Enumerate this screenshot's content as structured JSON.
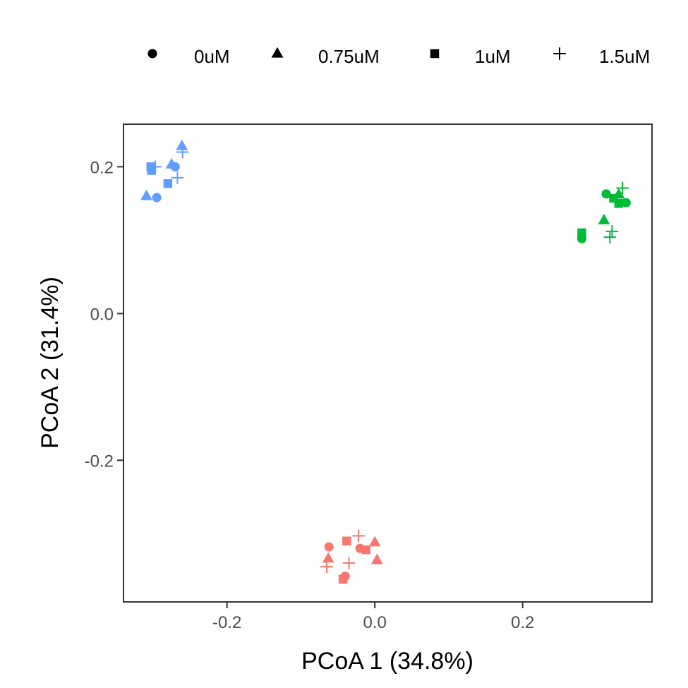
{
  "chart_data": {
    "type": "scatter",
    "xlabel": "PCoA 1 (34.8%)",
    "ylabel": "PCoA 2 (31.4%)",
    "xlim": [
      -0.34,
      0.375
    ],
    "ylim": [
      -0.393,
      0.258
    ],
    "x_ticks": [
      {
        "value": -0.2,
        "label": "-0.2"
      },
      {
        "value": 0.0,
        "label": "0.0"
      },
      {
        "value": 0.2,
        "label": "0.2"
      }
    ],
    "y_ticks": [
      {
        "value": 0.2,
        "label": "0.2"
      },
      {
        "value": 0.0,
        "label": "0.0"
      },
      {
        "value": -0.2,
        "label": "-0.2"
      }
    ],
    "grid": false,
    "legend_position": "top",
    "legend": [
      {
        "shape": "circle",
        "label": "0uM"
      },
      {
        "shape": "triangle",
        "label": "0.75uM"
      },
      {
        "shape": "square",
        "label": "1uM"
      },
      {
        "shape": "plus",
        "label": "1.5uM"
      }
    ],
    "colors": {
      "blue": "#619CFF",
      "green": "#00BA38",
      "red": "#F8766D"
    },
    "points": [
      {
        "x": -0.302,
        "y": 0.197,
        "shape": "circle",
        "color": "blue"
      },
      {
        "x": -0.295,
        "y": 0.158,
        "shape": "circle",
        "color": "blue"
      },
      {
        "x": -0.27,
        "y": 0.2,
        "shape": "circle",
        "color": "blue"
      },
      {
        "x": -0.309,
        "y": 0.16,
        "shape": "triangle",
        "color": "blue"
      },
      {
        "x": -0.275,
        "y": 0.203,
        "shape": "triangle",
        "color": "blue"
      },
      {
        "x": -0.261,
        "y": 0.228,
        "shape": "triangle",
        "color": "blue"
      },
      {
        "x": -0.303,
        "y": 0.2,
        "shape": "square",
        "color": "blue"
      },
      {
        "x": -0.302,
        "y": 0.195,
        "shape": "square",
        "color": "blue"
      },
      {
        "x": -0.28,
        "y": 0.177,
        "shape": "square",
        "color": "blue"
      },
      {
        "x": -0.297,
        "y": 0.2,
        "shape": "plus",
        "color": "blue"
      },
      {
        "x": -0.267,
        "y": 0.185,
        "shape": "plus",
        "color": "blue"
      },
      {
        "x": -0.26,
        "y": 0.22,
        "shape": "plus",
        "color": "blue"
      },
      {
        "x": 0.28,
        "y": 0.102,
        "shape": "circle",
        "color": "green"
      },
      {
        "x": 0.313,
        "y": 0.163,
        "shape": "circle",
        "color": "green"
      },
      {
        "x": 0.34,
        "y": 0.151,
        "shape": "circle",
        "color": "green"
      },
      {
        "x": 0.31,
        "y": 0.127,
        "shape": "triangle",
        "color": "green"
      },
      {
        "x": 0.33,
        "y": 0.162,
        "shape": "triangle",
        "color": "green"
      },
      {
        "x": 0.28,
        "y": 0.11,
        "shape": "square",
        "color": "green"
      },
      {
        "x": 0.323,
        "y": 0.157,
        "shape": "square",
        "color": "green"
      },
      {
        "x": 0.33,
        "y": 0.15,
        "shape": "square",
        "color": "green"
      },
      {
        "x": 0.318,
        "y": 0.104,
        "shape": "plus",
        "color": "green"
      },
      {
        "x": 0.321,
        "y": 0.112,
        "shape": "plus",
        "color": "green"
      },
      {
        "x": 0.335,
        "y": 0.171,
        "shape": "plus",
        "color": "green"
      },
      {
        "x": -0.062,
        "y": -0.318,
        "shape": "circle",
        "color": "red"
      },
      {
        "x": -0.04,
        "y": -0.358,
        "shape": "circle",
        "color": "red"
      },
      {
        "x": -0.02,
        "y": -0.32,
        "shape": "circle",
        "color": "red"
      },
      {
        "x": -0.063,
        "y": -0.334,
        "shape": "triangle",
        "color": "red"
      },
      {
        "x": 0.0,
        "y": -0.312,
        "shape": "triangle",
        "color": "red"
      },
      {
        "x": 0.003,
        "y": -0.336,
        "shape": "triangle",
        "color": "red"
      },
      {
        "x": -0.043,
        "y": -0.362,
        "shape": "square",
        "color": "red"
      },
      {
        "x": -0.038,
        "y": -0.31,
        "shape": "square",
        "color": "red"
      },
      {
        "x": -0.012,
        "y": -0.322,
        "shape": "square",
        "color": "red"
      },
      {
        "x": -0.065,
        "y": -0.345,
        "shape": "plus",
        "color": "red"
      },
      {
        "x": -0.035,
        "y": -0.34,
        "shape": "plus",
        "color": "red"
      },
      {
        "x": -0.022,
        "y": -0.303,
        "shape": "plus",
        "color": "red"
      }
    ]
  }
}
